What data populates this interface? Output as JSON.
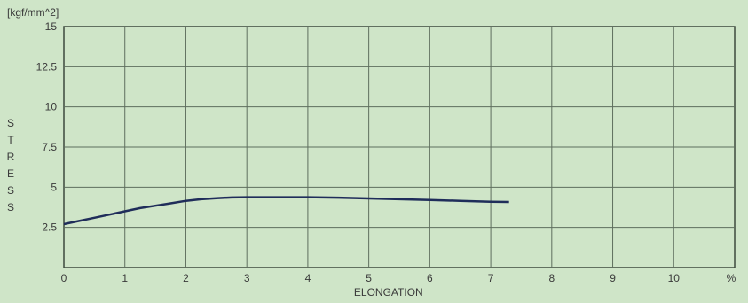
{
  "chart_data": {
    "type": "line",
    "unit_label": "[kgf/mm^2]",
    "xlabel": "ELONGATION",
    "ylabel": "STRESS",
    "x_unit": "%",
    "xlim": [
      0,
      11
    ],
    "ylim": [
      0,
      15
    ],
    "x_ticks": [
      "0",
      "1",
      "2",
      "3",
      "4",
      "5",
      "6",
      "7",
      "8",
      "9",
      "10"
    ],
    "y_ticks": [
      "15",
      "12.5",
      "10",
      "7.5",
      "5",
      "2.5"
    ],
    "grid": true,
    "series": [
      {
        "color": "#1f2d5a",
        "x": [
          0,
          0.25,
          0.5,
          0.75,
          1.0,
          1.25,
          1.5,
          1.75,
          2.0,
          2.25,
          2.5,
          2.75,
          3.0,
          3.5,
          4.0,
          4.5,
          5.0,
          5.5,
          6.0,
          6.5,
          7.0,
          7.3
        ],
        "y": [
          2.7,
          2.9,
          3.1,
          3.3,
          3.5,
          3.7,
          3.85,
          4.0,
          4.15,
          4.25,
          4.32,
          4.36,
          4.38,
          4.38,
          4.38,
          4.35,
          4.3,
          4.25,
          4.2,
          4.15,
          4.1,
          4.08
        ]
      }
    ]
  }
}
